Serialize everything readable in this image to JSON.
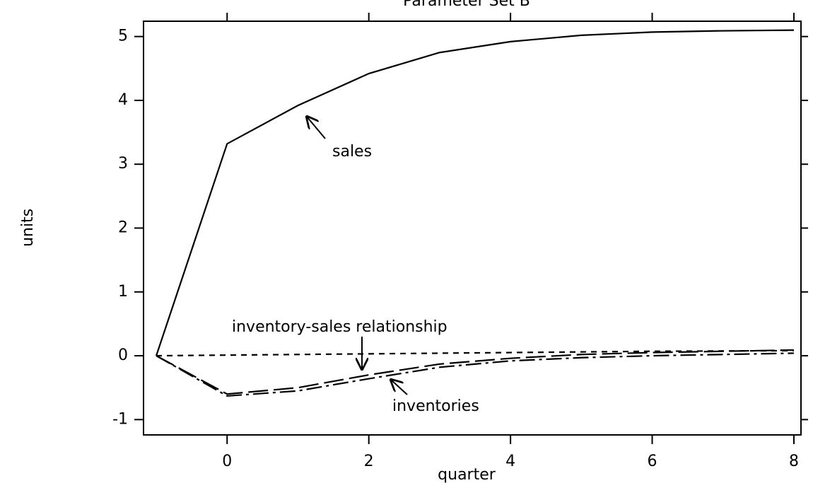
{
  "chart_data": {
    "type": "line",
    "title": "Parameter Set B",
    "x_label": "quarter",
    "y_label": "units",
    "x": [
      -1,
      0,
      1,
      2,
      3,
      4,
      5,
      6,
      7,
      8
    ],
    "series": [
      {
        "color": "#000000",
        "dash": "solid",
        "values": [
          0,
          3.32,
          3.92,
          4.42,
          4.75,
          4.92,
          5.02,
          5.07,
          5.09,
          5.1
        ]
      },
      {
        "color": "#000000",
        "dash": "longdash",
        "values": [
          0,
          -0.6,
          -0.5,
          -0.3,
          -0.13,
          -0.04,
          0.02,
          0.05,
          0.07,
          0.09
        ]
      },
      {
        "color": "#000000",
        "dash": "dashdot",
        "values": [
          0,
          -0.63,
          -0.55,
          -0.36,
          -0.18,
          -0.08,
          -0.03,
          0,
          0.02,
          0.04
        ]
      },
      {
        "color": "#000000",
        "dash": "shortdash",
        "values": [
          0,
          0.01,
          0.02,
          0.03,
          0.04,
          0.05,
          0.06,
          0.07,
          0.075,
          0.08
        ]
      }
    ],
    "annotations": [
      "sales",
      "inventory-sales relationship",
      "inventories"
    ],
    "xlim": [
      -1.18,
      8.1
    ],
    "ylim": [
      -1.24,
      5.24
    ],
    "xticks": [
      0,
      2,
      4,
      6,
      8
    ],
    "yticks": [
      -1,
      0,
      1,
      2,
      3,
      4,
      5
    ],
    "grid": false
  }
}
